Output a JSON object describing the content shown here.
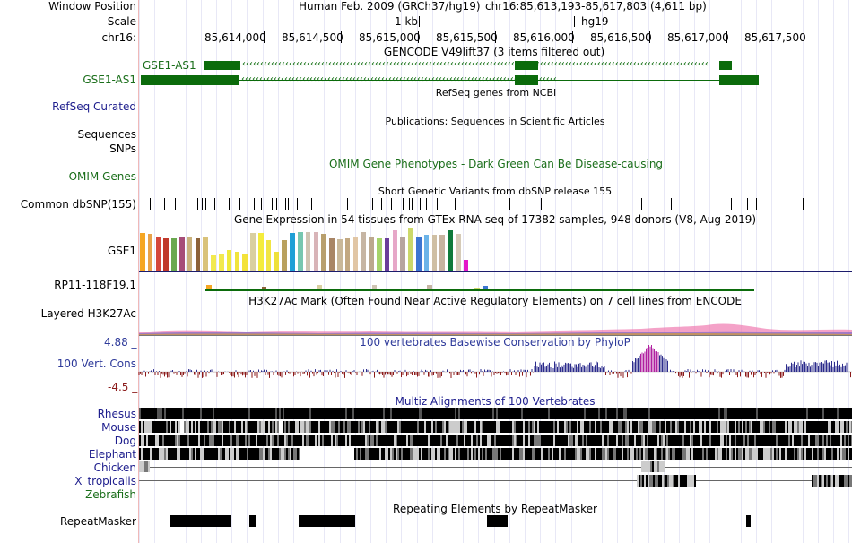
{
  "header": {
    "window_position_label": "Window Position",
    "scale_label": "Scale",
    "chrom_label": "chr16:",
    "assembly": "Human Feb. 2009 (GRCh37/hg19)",
    "position": "chr16:85,613,193-85,617,803 (4,611 bp)",
    "scale_value": "1 kb",
    "scale_db": "hg19",
    "ruler_ticks": [
      "85,614,000",
      "85,614,500",
      "85,615,000",
      "85,615,500",
      "85,616,000",
      "85,616,500",
      "85,617,000",
      "85,617,500"
    ]
  },
  "tracks": {
    "gencode": {
      "title": "GENCODE V49lift37 (3 items filtered out)",
      "gene_label": "GSE1-AS1"
    },
    "refseq": {
      "side_label": "GSE1-AS1",
      "title": "RefSeq genes from NCBI",
      "group_label": "RefSeq Curated"
    },
    "publications": {
      "title": "Publications: Sequences in Scientific Articles",
      "side_label_1": "Sequences",
      "side_label_2": "SNPs"
    },
    "omim": {
      "side_label": "OMIM Genes",
      "title": "OMIM Gene Phenotypes - Dark Green Can Be Disease-causing"
    },
    "dbsnp": {
      "side_label": "Common dbSNP(155)",
      "title": "Short Genetic Variants from dbSNP release 155"
    },
    "gtex": {
      "title": "Gene Expression in 54 tissues from GTEx RNA-seq of 17382 samples, 948 donors (V8, Aug 2019)",
      "gene1": "GSE1",
      "gene2": "RP11-118F19.1"
    },
    "h3k27ac": {
      "side_label": "Layered H3K27Ac",
      "title": "H3K27Ac Mark (Often Found Near Active Regulatory Elements) on 7 cell lines from ENCODE"
    },
    "phylop": {
      "side_label": "100 Vert. Cons",
      "title": "100 vertebrates Basewise Conservation by PhyloP",
      "max": "4.88 _",
      "min": "-4.5 _"
    },
    "multiz": {
      "title": "Multiz Alignments of 100 Vertebrates",
      "species": [
        "Rhesus",
        "Mouse",
        "Dog",
        "Elephant",
        "Chicken",
        "X_tropicalis",
        "Zebrafish"
      ]
    },
    "repeatmasker": {
      "side_label": "RepeatMasker",
      "title": "Repeating Elements by RepeatMasker"
    }
  },
  "colors": {
    "gene_green": "#0b6b0b",
    "title_green": "#1a6e1a",
    "navy": "#1c1c8c",
    "phylop_pos": "#2c2c8c",
    "phylop_neg": "#8b1a1a",
    "gtex_palette": [
      "#f5a623",
      "#e8a24a",
      "#d4463b",
      "#c0392b",
      "#6aa84f",
      "#a64d79",
      "#c9b17c",
      "#8c6239",
      "#d9c27a",
      "#f2e94e",
      "#f2e94e",
      "#eeea3a",
      "#f0e43c",
      "#f3e23a",
      "#d9cfa0",
      "#f4ec3c",
      "#f1e543",
      "#eee13a",
      "#b9a15e",
      "#1f9fd6",
      "#76c7b0",
      "#cfc4b3",
      "#d8b4b8",
      "#b89f6d",
      "#a88566",
      "#c9b89a",
      "#c2a882",
      "#e1c6a5",
      "#c6b5a3",
      "#bca88e",
      "#a6d36a",
      "#6a3d9a",
      "#e6a7c8",
      "#b7a5a0",
      "#ccd86a",
      "#3d76d1",
      "#6cb4e8",
      "#cfbfa4",
      "#c7b3a0",
      "#0f7a3a",
      "#d5cab7",
      "#e418c9"
    ],
    "gtex_values": [
      0.9,
      0.88,
      0.82,
      0.78,
      0.78,
      0.8,
      0.82,
      0.78,
      0.82,
      0.38,
      0.42,
      0.5,
      0.45,
      0.42,
      0.9,
      0.9,
      0.72,
      0.45,
      0.72,
      0.9,
      0.92,
      0.92,
      0.92,
      0.88,
      0.78,
      0.75,
      0.78,
      0.82,
      0.92,
      0.8,
      0.78,
      0.78,
      0.95,
      0.82,
      1.0,
      0.82,
      0.85,
      0.85,
      0.85,
      0.95,
      0.88,
      0.28
    ]
  }
}
